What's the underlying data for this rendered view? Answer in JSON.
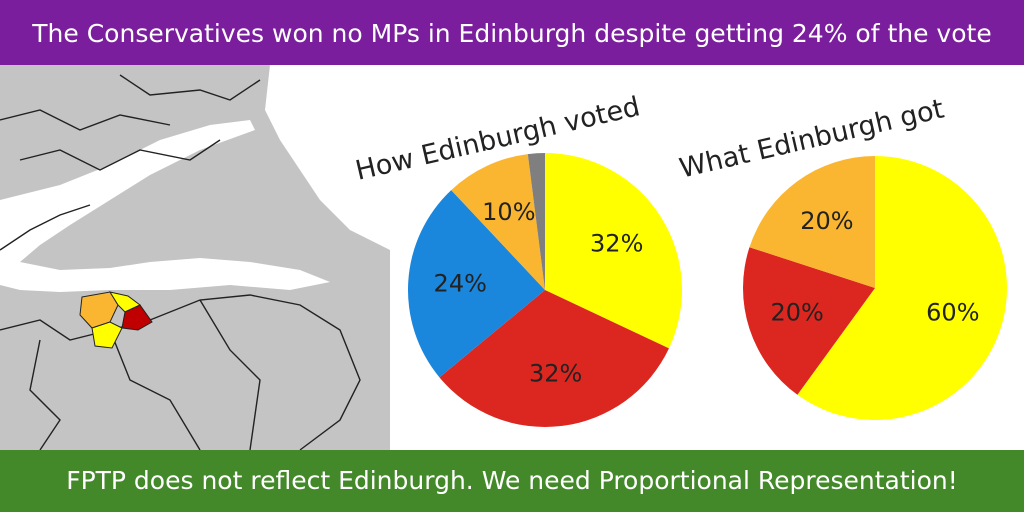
{
  "header": {
    "title": "The Conservatives won no MPs in Edinburgh despite getting 24% of the vote"
  },
  "footer": {
    "text": "FPTP does not reflect Edinburgh. We need Proportional Representation!"
  },
  "chart_data": [
    {
      "type": "pie",
      "title": "How Edinburgh voted",
      "values": [
        32,
        32,
        24,
        10,
        2
      ],
      "value_labels": [
        "32%",
        "32%",
        "24%",
        "10%",
        null
      ],
      "colors": [
        "#ffff00",
        "#dc2620",
        "#1a86dc",
        "#fbb631",
        "#7f7f7f"
      ]
    },
    {
      "type": "pie",
      "title": "What Edinburgh got",
      "values": [
        60,
        20,
        20
      ],
      "value_labels": [
        "60%",
        "20%",
        "20%"
      ],
      "colors": [
        "#ffff00",
        "#dc2620",
        "#fbb631"
      ]
    }
  ]
}
